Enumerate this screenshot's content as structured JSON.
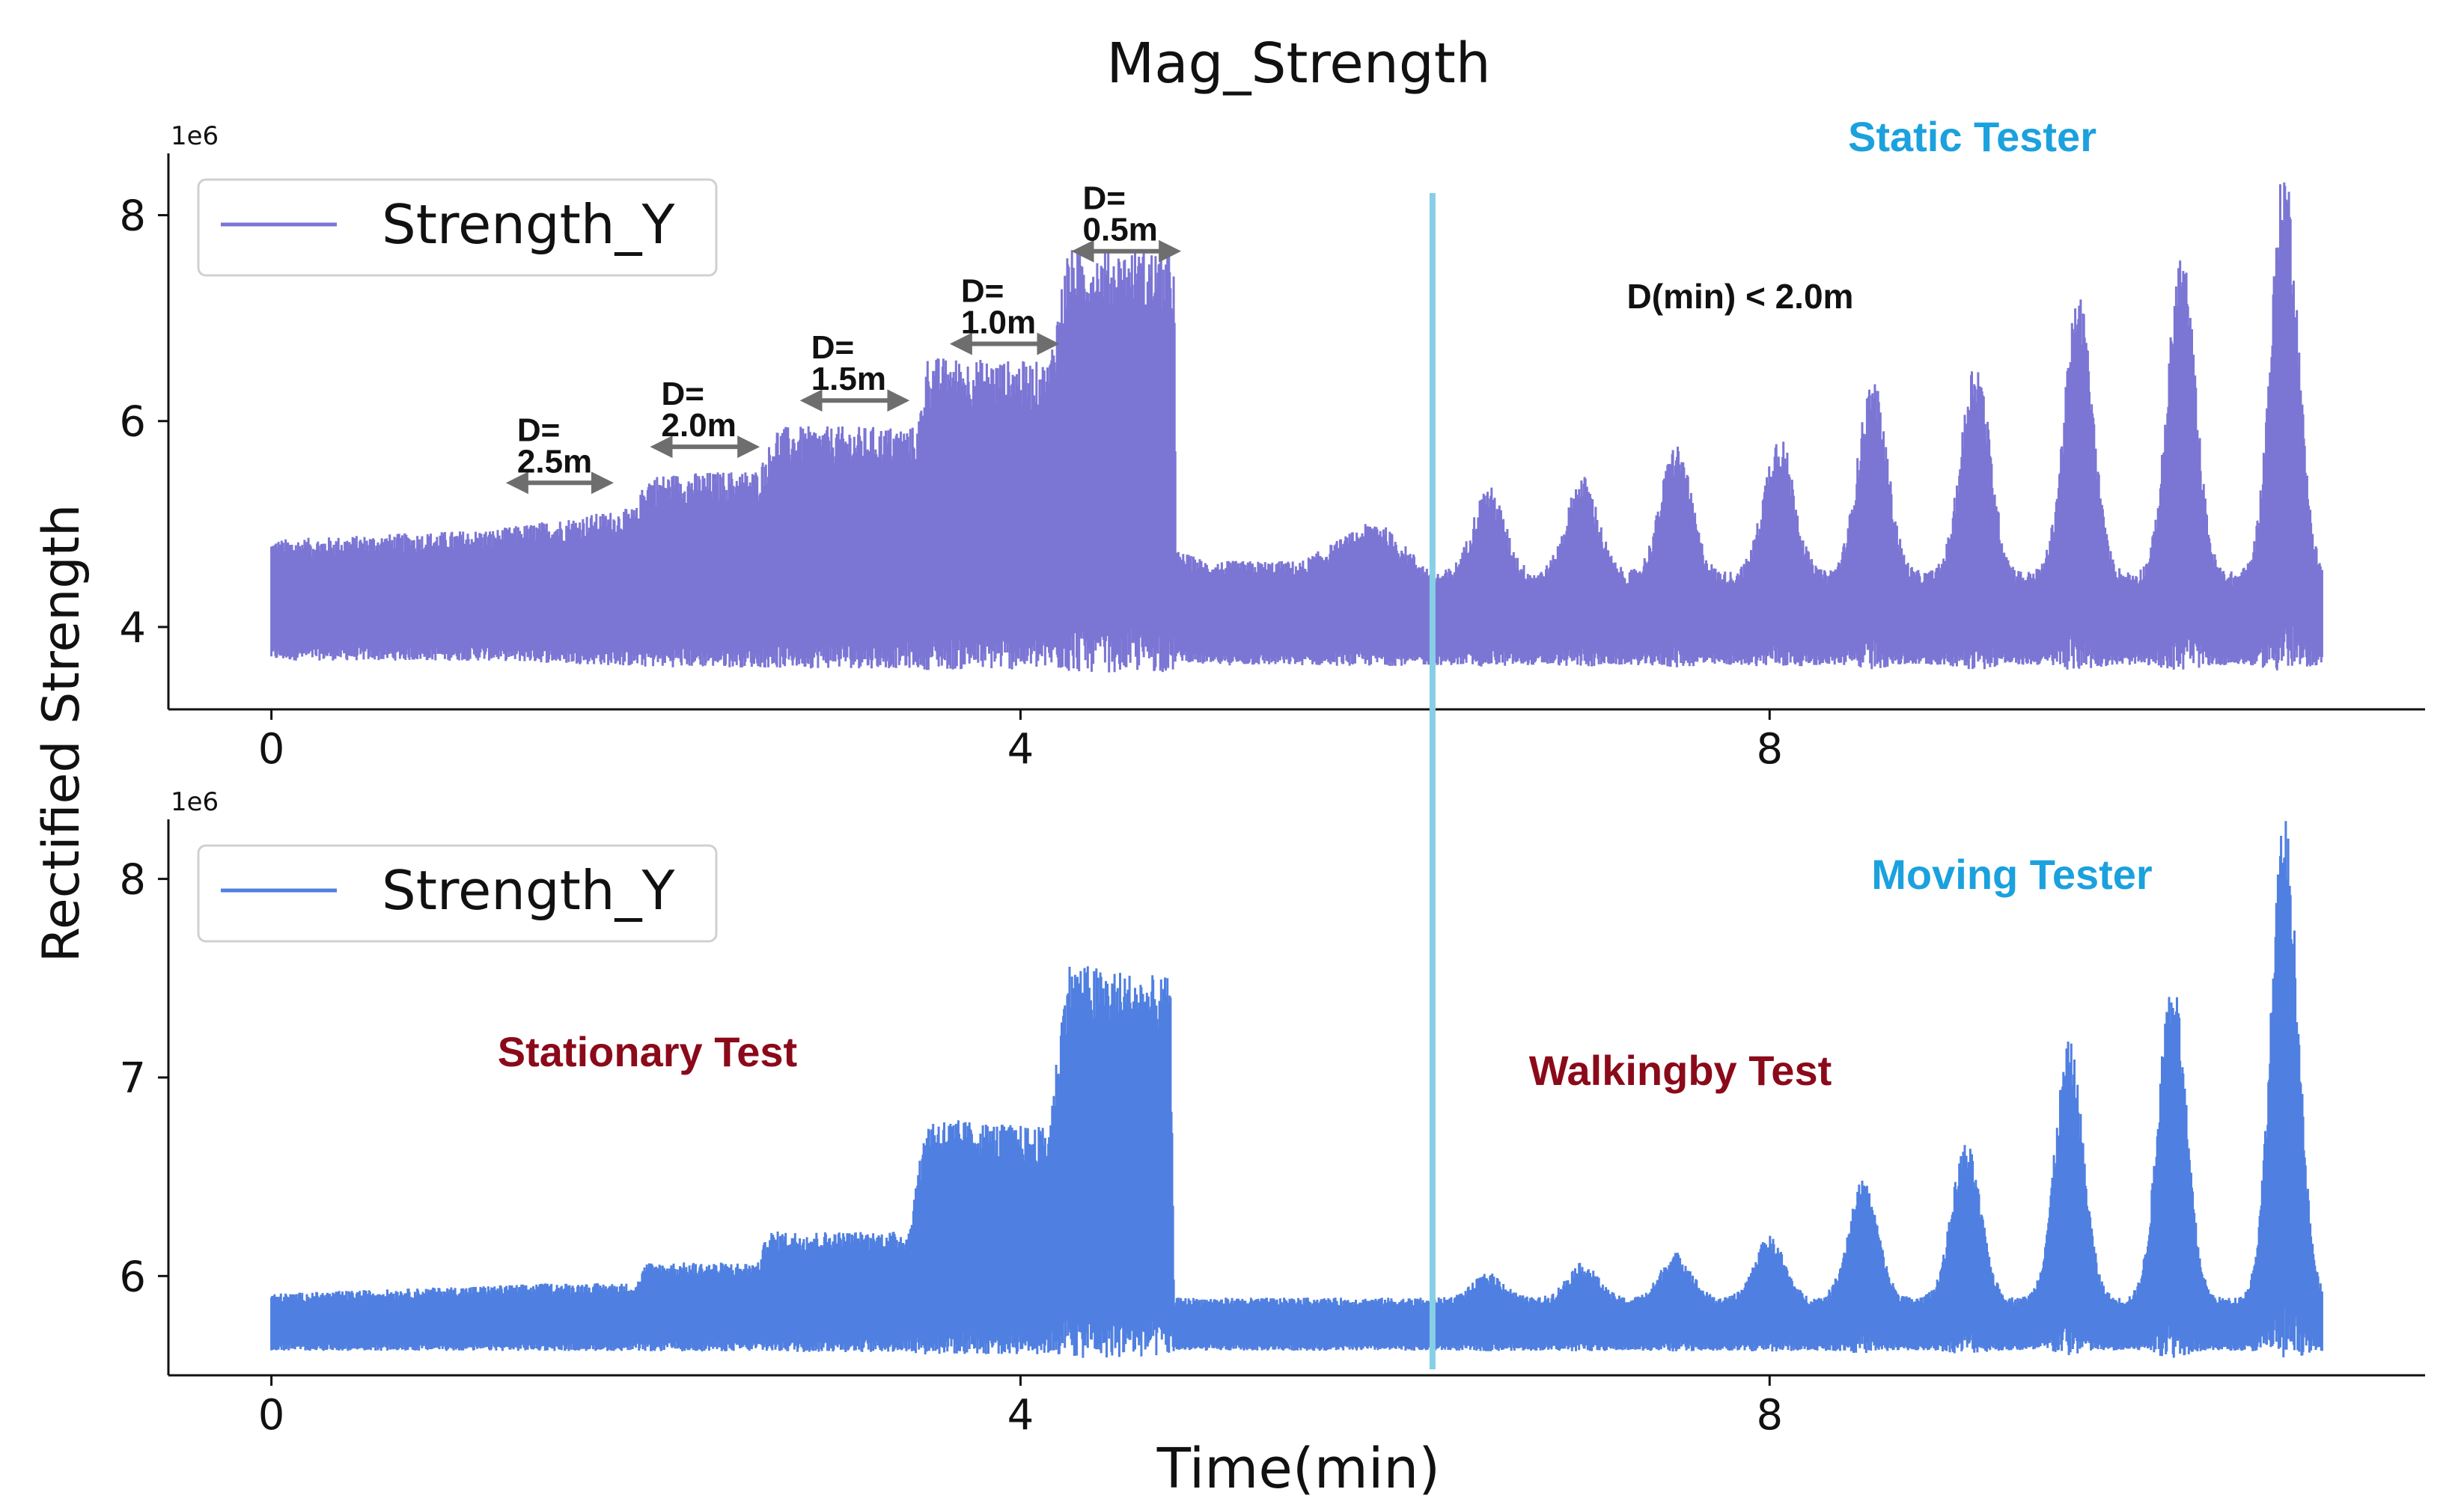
{
  "chart_data": [
    {
      "type": "line",
      "title": "Mag_Strength",
      "panel": "top",
      "xlabel": "",
      "ylabel": "Rectified Strength",
      "y_scale_label": "1e6",
      "xlim": [
        -0.55,
        11.5
      ],
      "ylim": [
        3.2,
        8.6
      ],
      "x_ticks": [
        0,
        4,
        8
      ],
      "x_tick_labels": [
        "0",
        "4",
        "8"
      ],
      "y_ticks": [
        4,
        6,
        8
      ],
      "y_tick_labels": [
        "4",
        "6",
        "8"
      ],
      "series": [
        {
          "name": "Strength_Y",
          "color": "#7b75d4",
          "envelope": {
            "x": [
              0.0,
              1.2,
              1.95,
              2.0,
              2.6,
              2.7,
              3.45,
              3.5,
              4.15,
              4.25,
              4.82,
              4.83,
              5.0,
              5.5,
              5.9,
              6.2
            ],
            "upper": [
              4.8,
              4.9,
              5.1,
              5.4,
              5.45,
              5.85,
              5.85,
              6.5,
              6.45,
              7.5,
              7.5,
              4.7,
              4.6,
              4.6,
              5.0,
              4.5
            ],
            "lower": [
              3.7,
              3.7,
              3.65,
              3.65,
              3.65,
              3.65,
              3.65,
              3.65,
              3.65,
              3.65,
              3.65,
              3.7,
              3.65,
              3.65,
              3.65,
              3.65
            ]
          },
          "peaks_after_6": {
            "x": [
              6.5,
              7.0,
              7.5,
              8.05,
              8.55,
              9.1,
              9.65,
              10.2,
              10.75
            ],
            "peak": [
              5.3,
              5.4,
              5.7,
              5.8,
              6.3,
              6.5,
              7.1,
              7.5,
              8.3
            ]
          }
        }
      ],
      "annotations": [
        "D=\n2.5m",
        "D=\n2.0m",
        "D=\n1.5m",
        "D=\n1.0m",
        "D=\n0.5m",
        "Static Tester",
        "D(min)  < 2.0m"
      ],
      "legend": "upper-left"
    },
    {
      "type": "line",
      "panel": "bottom",
      "xlabel": "Time(min)",
      "ylabel": "Rectified Strength",
      "y_scale_label": "1e6",
      "xlim": [
        -0.55,
        11.5
      ],
      "ylim": [
        5.5,
        8.3
      ],
      "x_ticks": [
        0,
        4,
        8
      ],
      "x_tick_labels": [
        "0",
        "4",
        "8"
      ],
      "y_ticks": [
        6,
        7,
        8
      ],
      "y_tick_labels": [
        "6",
        "7",
        "8"
      ],
      "series": [
        {
          "name": "Strength_Y",
          "color": "#4f7fe0",
          "envelope": {
            "x": [
              0.0,
              1.5,
              1.95,
              2.0,
              2.6,
              2.65,
              3.4,
              3.5,
              4.15,
              4.25,
              4.8,
              4.82,
              6.2
            ],
            "upper": [
              5.9,
              5.95,
              5.95,
              6.05,
              6.05,
              6.2,
              6.2,
              6.75,
              6.7,
              7.5,
              7.42,
              5.88,
              5.88
            ],
            "lower": [
              5.63,
              5.63,
              5.63,
              5.63,
              5.63,
              5.63,
              5.63,
              5.63,
              5.63,
              5.63,
              5.63,
              5.63,
              5.63
            ]
          },
          "peaks_after_6": {
            "x": [
              6.5,
              7.0,
              7.5,
              8.0,
              8.5,
              9.05,
              9.6,
              10.15,
              10.75
            ],
            "peak": [
              6.0,
              6.05,
              6.1,
              6.18,
              6.45,
              6.63,
              7.12,
              7.45,
              8.2
            ]
          }
        }
      ],
      "annotations": [
        "Moving Tester",
        "Stationary Test",
        "Walkingby Test"
      ],
      "legend": "upper-left"
    }
  ],
  "colors": {
    "top_series": "#7b75d4",
    "bottom_series": "#4f7fe0",
    "divider": "#87cfe6",
    "tester_label": "#1ba1de",
    "test_label": "#8b0a1a",
    "arrow": "#6e6e6e"
  },
  "divider_x": 6.2,
  "figure": {
    "title": "Mag_Strength",
    "ylabel": "Rectified Strength",
    "xlabel": "Time(min)"
  },
  "top": {
    "scale": "1e6",
    "legend_label": "Strength_Y",
    "tag": "Static Tester",
    "dmin": "D(min)  < 2.0m",
    "distance_labels": [
      {
        "head": "D=",
        "value": "2.5m",
        "x0": 1.28,
        "x1": 1.8
      },
      {
        "head": "D=",
        "value": "2.0m",
        "x0": 2.05,
        "x1": 2.58
      },
      {
        "head": "D=",
        "value": "1.5m",
        "x0": 2.85,
        "x1": 3.38
      },
      {
        "head": "D=",
        "value": "1.0m",
        "x0": 3.65,
        "x1": 4.18
      },
      {
        "head": "D=",
        "value": "0.5m",
        "x0": 4.3,
        "x1": 4.83
      }
    ]
  },
  "bottom": {
    "scale": "1e6",
    "legend_label": "Strength_Y",
    "tag": "Moving Tester",
    "stationary": "Stationary Test",
    "walkingby": "Walkingby Test"
  }
}
